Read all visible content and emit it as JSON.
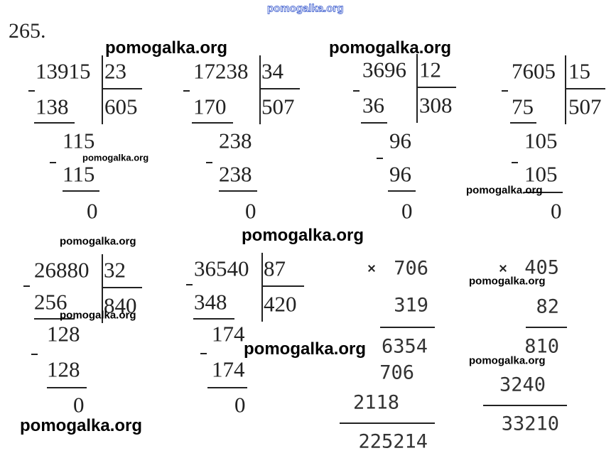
{
  "site_header": "pomogalka.org",
  "problem_number": "265.",
  "watermarks": [
    "pomogalka.org",
    "pomogalka.org",
    "pomogalka.org",
    "pomogalka.org",
    "pomogalka.org",
    "pomogalka.org",
    "pomogalka.org",
    "pomogalka.org",
    "pomogalka.org",
    "pomogalka.org",
    "pomogalka.org"
  ],
  "divisions": [
    {
      "dividend": "13915",
      "divisor": "23",
      "quotient": "605",
      "steps": [
        "138",
        "115",
        "115",
        "0"
      ]
    },
    {
      "dividend": "17238",
      "divisor": "34",
      "quotient": "507",
      "steps": [
        "170",
        "238",
        "238",
        "0"
      ]
    },
    {
      "dividend": "3696",
      "divisor": "12",
      "quotient": "308",
      "steps": [
        "36",
        "96",
        "96",
        "0"
      ]
    },
    {
      "dividend": "7605",
      "divisor": "15",
      "quotient": "507",
      "steps": [
        "75",
        "105",
        "105",
        "0"
      ]
    },
    {
      "dividend": "26880",
      "divisor": "32",
      "quotient": "840",
      "steps": [
        "256",
        "128",
        "128",
        "0"
      ]
    },
    {
      "dividend": "36540",
      "divisor": "87",
      "quotient": "420",
      "steps": [
        "348",
        "174",
        "174",
        "0"
      ]
    }
  ],
  "multiplications": [
    {
      "a": "706",
      "b": "319",
      "partials": [
        "6354",
        "706",
        "2118"
      ],
      "result": "225214"
    },
    {
      "a": "405",
      "b": "82",
      "partials": [
        "810",
        "3240"
      ],
      "result": "33210"
    }
  ]
}
